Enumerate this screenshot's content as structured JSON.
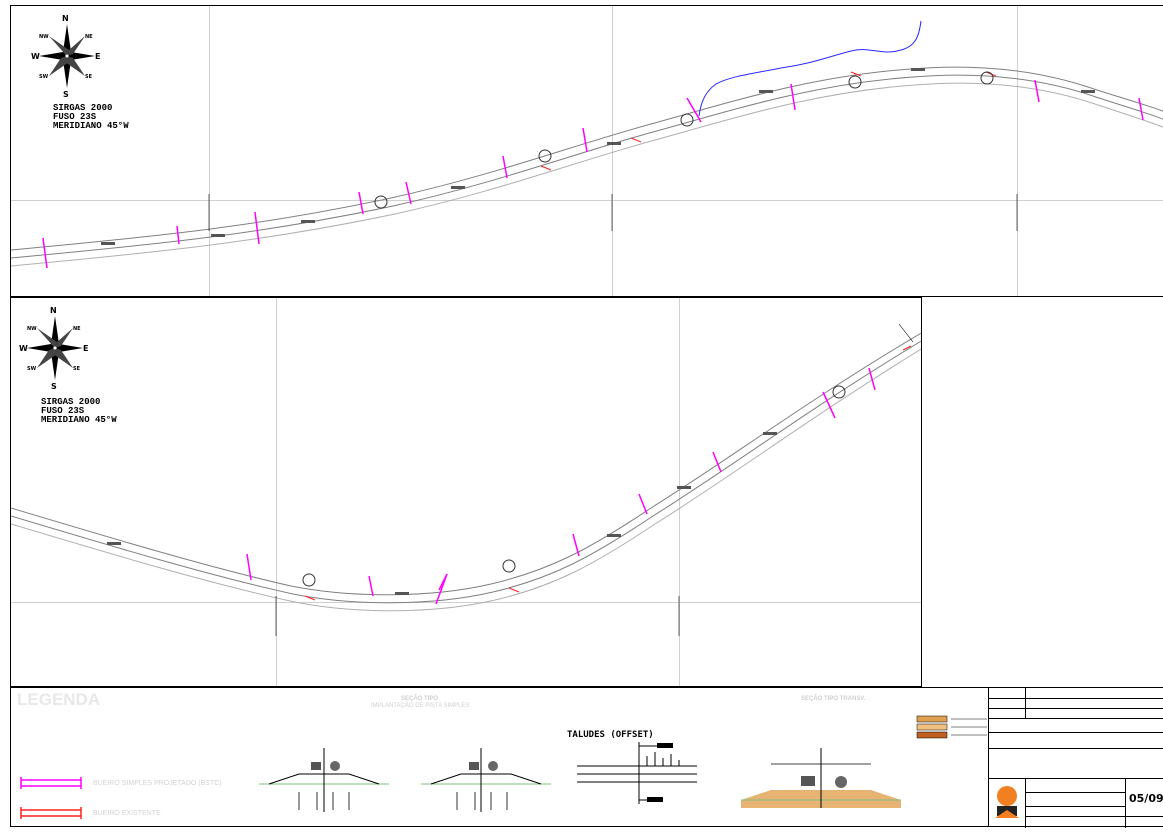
{
  "compass": {
    "north": "N",
    "south": "S",
    "east": "E",
    "west": "W",
    "northeast": "NE",
    "northwest": "NW",
    "southeast": "SE",
    "southwest": "SW"
  },
  "datum_top": [
    "SIRGAS 2000",
    "FUSO 23S",
    "MERIDIANO 45°W"
  ],
  "datum_bottom": [
    "SIRGAS 2000",
    "FUSO 23S",
    "MERIDIANO 45°W"
  ],
  "legend": {
    "title": "LEGENDA",
    "items": [
      {
        "label": "BUEIRO SIMPLES PROJETADO (BSTC)",
        "color": "#ff00ff"
      },
      {
        "label": "BUEIRO EXISTENTE",
        "color": "#ff2020"
      }
    ]
  },
  "sections": {
    "secao_tipo_title": "SEÇÃO TIPO",
    "secao_tipo_sub": "IMPLANTAÇÃO DE PISTA SIMPLES",
    "talude_title": "TALUDES (OFFSET)",
    "secao_transv_title": "SEÇÃO TIPO TRANSV."
  },
  "title_block": {
    "sheet": "05/09"
  },
  "colors": {
    "road": "#808080",
    "river": "#2a2aff",
    "culvert_projected": "#ff00ff",
    "culvert_existing": "#ff2020",
    "grid": "#cfcfcf"
  }
}
